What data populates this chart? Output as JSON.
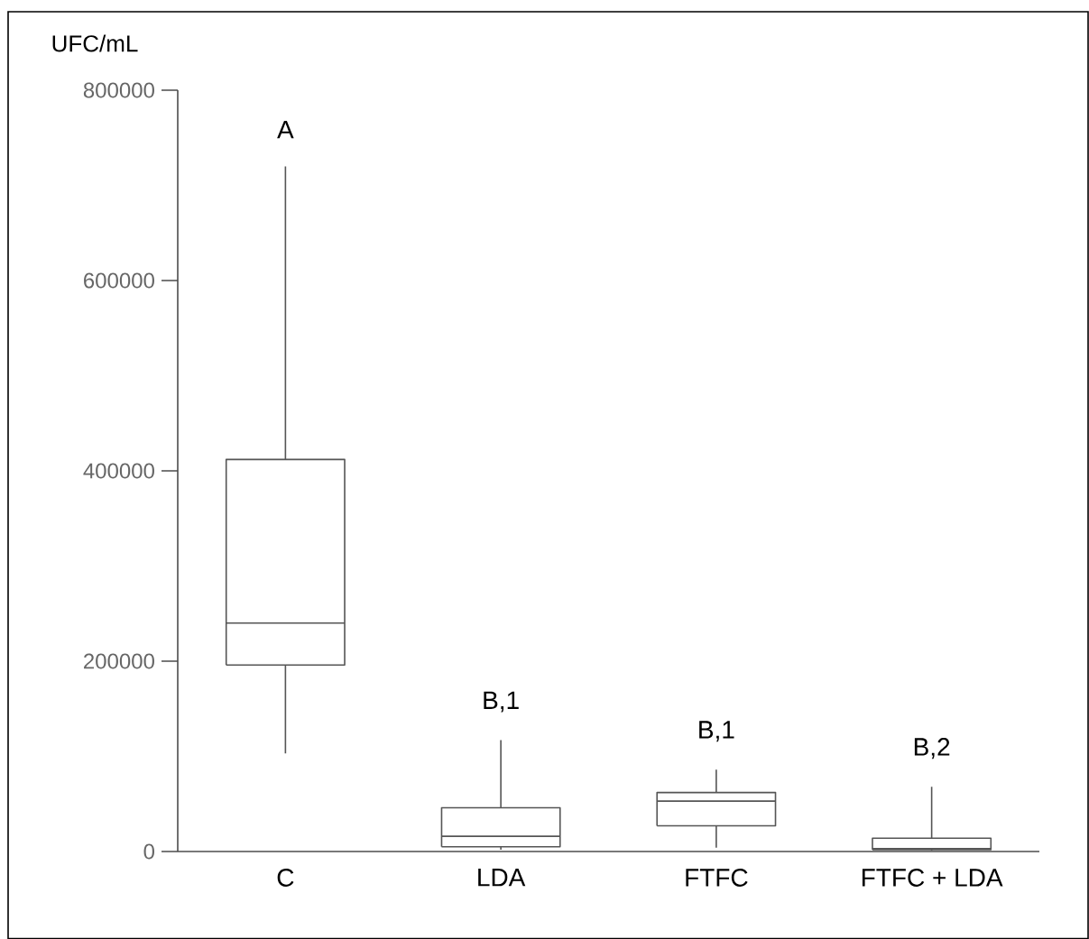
{
  "chart_data": {
    "type": "box",
    "ylabel": "UFC/mL",
    "categories": [
      "C",
      "LDA",
      "FTFC",
      "FTFC + LDA"
    ],
    "boxes": [
      {
        "low": 103000,
        "q1": 196000,
        "median": 240000,
        "q3": 412000,
        "high": 720000
      },
      {
        "low": 2000,
        "q1": 5000,
        "median": 16000,
        "q3": 46000,
        "high": 117000
      },
      {
        "low": 4000,
        "q1": 27000,
        "median": 53000,
        "q3": 62000,
        "high": 86000
      },
      {
        "low": 1000,
        "q1": 2000,
        "median": 3000,
        "q3": 14000,
        "high": 68000
      }
    ],
    "color": "#555555",
    "ylim": [
      0,
      800000
    ],
    "yticks": [
      0,
      200000,
      400000,
      600000,
      800000
    ],
    "annotations": [
      "A",
      "B,1",
      "B,1",
      "B,2"
    ]
  }
}
